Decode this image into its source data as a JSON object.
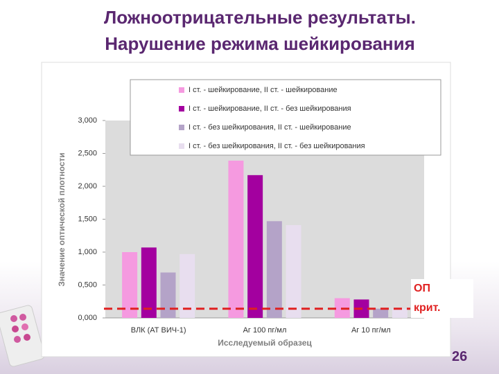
{
  "slide": {
    "title": [
      "Ложноотрицательные результаты.",
      "Нарушение режима шейкирования"
    ],
    "page_number": 26
  },
  "chart_data": {
    "type": "bar",
    "categories": [
      "ВЛК (АТ ВИЧ-1)",
      "Аг 100 пг/мл",
      "Аг 10 пг/мл"
    ],
    "series": [
      {
        "name": "I ст. - шейкирование, II ст. - шейкирование",
        "color": "#f59ae0",
        "values": [
          1.0,
          2.39,
          0.3
        ]
      },
      {
        "name": "I ст. - шейкирование, II ст. - без шейкирования",
        "color": "#a3009f",
        "values": [
          1.07,
          2.17,
          0.28
        ]
      },
      {
        "name": "I ст. - без шейкирования, II ст. - шейкирование",
        "color": "#b4a3c8",
        "values": [
          0.69,
          1.47,
          0.14
        ]
      },
      {
        "name": "I ст. - без шейкирования, II ст. - без шейкирования",
        "color": "#e8deef",
        "values": [
          0.97,
          1.41,
          0.14
        ]
      }
    ],
    "ylim": [
      0,
      3
    ],
    "yticks": [
      {
        "value": 0,
        "label": "0,000"
      },
      {
        "value": 0.5,
        "label": "0,500"
      },
      {
        "value": 1,
        "label": "1,000"
      },
      {
        "value": 1.5,
        "label": "1,500"
      },
      {
        "value": 2,
        "label": "2,000"
      },
      {
        "value": 2.5,
        "label": "2,500"
      },
      {
        "value": 3,
        "label": "3,000"
      }
    ],
    "y_label": "Значение оптической плотности",
    "x_label": "Исследуемый образец",
    "threshold": {
      "value": 0.14,
      "label": "ОП крит.",
      "color": "#e02020"
    }
  }
}
